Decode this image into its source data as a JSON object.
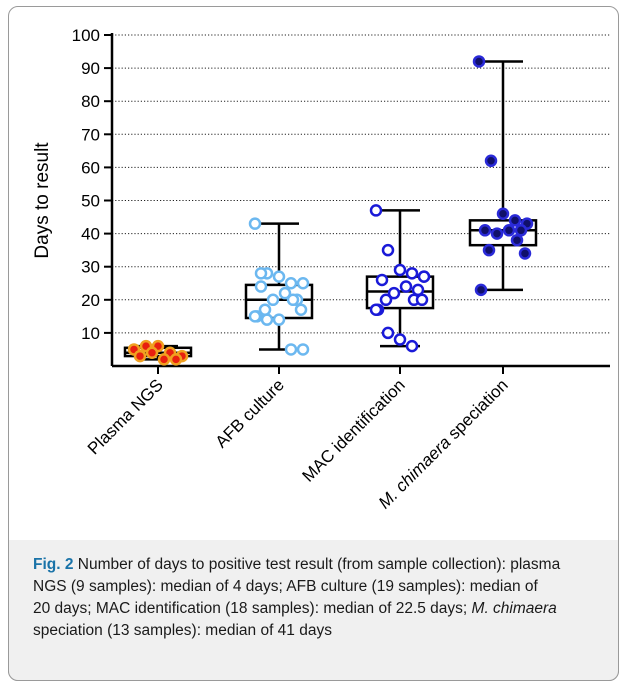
{
  "chart_data": {
    "type": "box",
    "ylabel": "Days to result",
    "ylim": [
      0,
      100
    ],
    "yticks": [
      10,
      20,
      30,
      40,
      50,
      60,
      70,
      80,
      90,
      100
    ],
    "grid": "horizontal dotted",
    "categories": [
      "Plasma NGS",
      "AFB culture",
      "MAC identification",
      "M. chimaera speciation"
    ],
    "series": [
      {
        "category": "Plasma NGS",
        "color_fill": "#e8200f",
        "color_edge": "#f0a020",
        "min": 2,
        "q1": 3,
        "median": 4,
        "q3": 5.5,
        "max": 6,
        "points": [
          5,
          6,
          6,
          4,
          3,
          3,
          2,
          2,
          4
        ]
      },
      {
        "category": "AFB culture",
        "color_fill": "#ffffff",
        "color_edge": "#6cb8f0",
        "min": 5,
        "q1": 14.5,
        "median": 20,
        "q3": 24.5,
        "max": 43,
        "points": [
          43,
          28,
          27,
          25,
          25,
          24,
          22,
          20,
          20,
          20,
          17,
          17,
          15,
          15,
          14,
          14,
          5,
          5,
          28
        ]
      },
      {
        "category": "MAC identification",
        "color_fill": "#ffffff",
        "color_edge": "#1a1ad8",
        "min": 6,
        "q1": 17.5,
        "median": 22.5,
        "q3": 27,
        "max": 47,
        "points": [
          47,
          35,
          29,
          28,
          27,
          26,
          24,
          23,
          22,
          20,
          20,
          20,
          17,
          17,
          10,
          8,
          6,
          27
        ]
      },
      {
        "category": "M. chimaera speciation",
        "color_fill": "#10106a",
        "color_edge": "#2a2ad8",
        "min": 23,
        "q1": 36.5,
        "median": 41,
        "q3": 44,
        "max": 92,
        "points": [
          92,
          62,
          46,
          44,
          43,
          41,
          41,
          41,
          40,
          38,
          35,
          34,
          23
        ]
      }
    ]
  },
  "caption": {
    "label": "Fig. 2",
    "text_1": " Number of days to positive test result (from sample collection): plasma NGS (9 samples): median of 4 days; AFB culture (19 samples): median of 20 days; MAC identification (18 samples): median of 22.5 days; ",
    "italic": "M. chimaera",
    "text_2": " speciation (13 samples): median of 41 days"
  }
}
